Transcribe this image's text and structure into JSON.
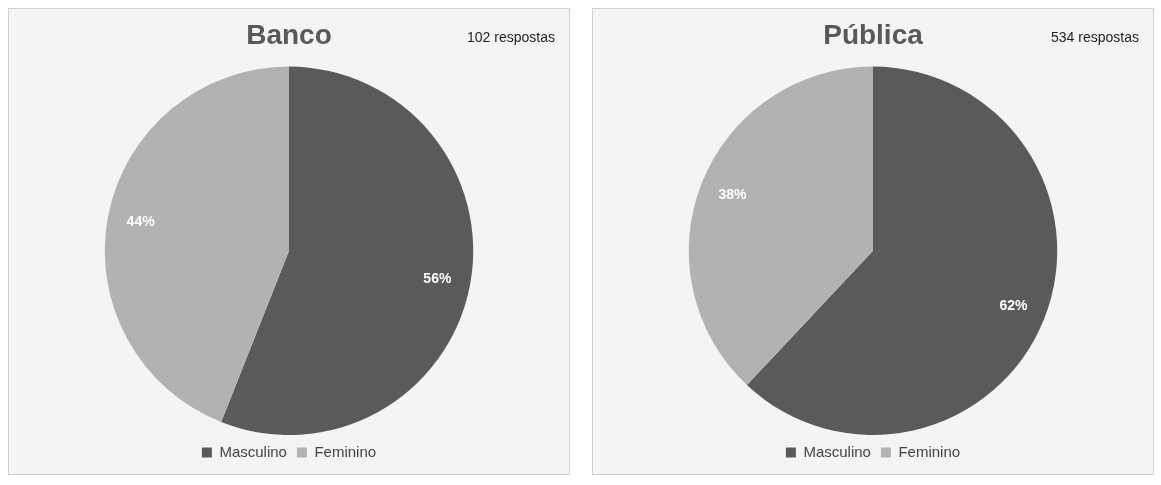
{
  "chart_data": [
    {
      "type": "pie",
      "title": "Banco",
      "annotations": [
        "102 respostas"
      ],
      "categories": [
        "Masculino",
        "Feminino"
      ],
      "values": [
        56,
        44
      ],
      "value_labels": [
        "56%",
        "44%"
      ],
      "colors": [
        "#5a5a5a",
        "#b2b2b2"
      ],
      "legend": "bottom"
    },
    {
      "type": "pie",
      "title": "Pública",
      "annotations": [
        "534 respostas"
      ],
      "categories": [
        "Masculino",
        "Feminino"
      ],
      "values": [
        62,
        38
      ],
      "value_labels": [
        "62%",
        "38%"
      ],
      "colors": [
        "#5a5a5a",
        "#b2b2b2"
      ],
      "legend": "bottom"
    }
  ]
}
